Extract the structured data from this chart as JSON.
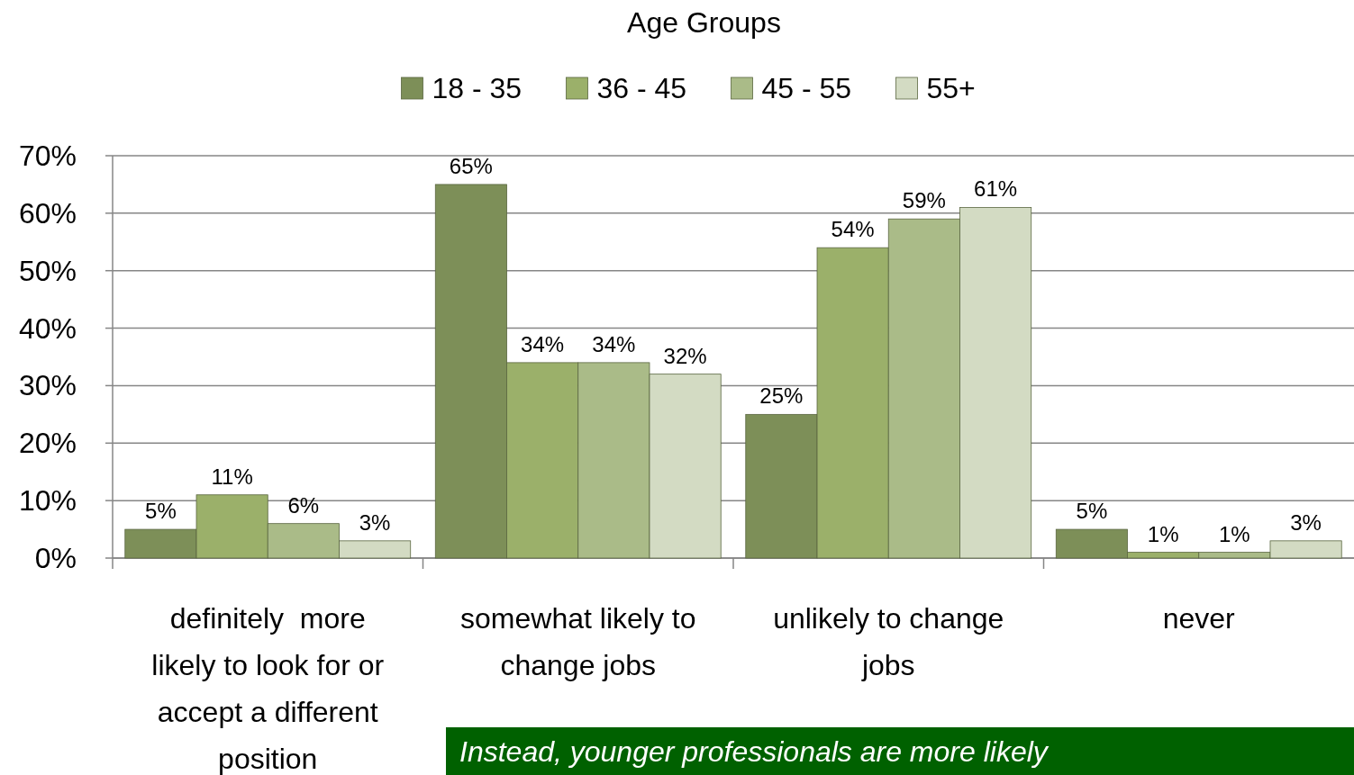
{
  "chart_data": {
    "type": "bar",
    "title": "Age Groups",
    "legend": "top",
    "grid": "y",
    "categories": [
      "definitely  more likely to look for or accept a different position",
      "somewhat likely to change jobs",
      "unlikely to change jobs",
      "never"
    ],
    "series": [
      {
        "name": "18 - 35",
        "color": "#7d8f58",
        "values": [
          5,
          65,
          25,
          5
        ],
        "value_labels": [
          "5%",
          "65%",
          "25%",
          "5%"
        ]
      },
      {
        "name": "36 - 45",
        "color": "#9bb06a",
        "values": [
          11,
          34,
          54,
          1
        ],
        "value_labels": [
          "11%",
          "34%",
          "54%",
          "1%"
        ]
      },
      {
        "name": "45 - 55",
        "color": "#aabb88",
        "values": [
          6,
          34,
          59,
          1
        ],
        "value_labels": [
          "6%",
          "34%",
          "59%",
          "1%"
        ]
      },
      {
        "name": "55+",
        "color": "#d3dbc3",
        "values": [
          3,
          32,
          61,
          3
        ],
        "value_labels": [
          "3%",
          "32%",
          "61%",
          "3%"
        ]
      }
    ],
    "ylim": [
      0,
      70
    ],
    "yticks": [
      {
        "value": 0,
        "label": "0%"
      },
      {
        "value": 10,
        "label": "10%"
      },
      {
        "value": 20,
        "label": "20%"
      },
      {
        "value": 30,
        "label": "30%"
      },
      {
        "value": 40,
        "label": "40%"
      },
      {
        "value": 50,
        "label": "50%"
      },
      {
        "value": 60,
        "label": "60%"
      },
      {
        "value": 70,
        "label": "70%"
      }
    ],
    "annotations": [
      "Instead, younger professionals are more likely"
    ]
  }
}
